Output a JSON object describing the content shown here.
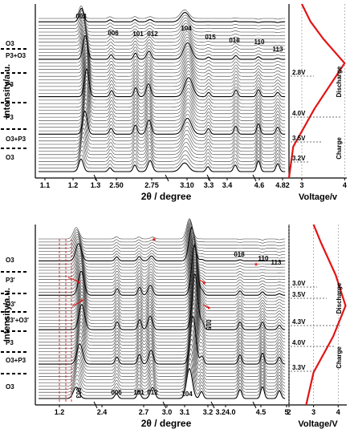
{
  "panels": [
    {
      "id": "top",
      "y_axis_label": "Intensity/a.u.",
      "x_axis_label": "2θ / degree",
      "right_axis_label": "Voltage/v",
      "phase_labels": [
        "O3",
        "P3+O3",
        "P3",
        "P3",
        "O3+P3",
        "O3"
      ],
      "peak_labels": [
        "003",
        "006",
        "101",
        "012",
        "104",
        "015",
        "018",
        "110",
        "113"
      ],
      "voltage_labels": [
        "2.8V",
        "4.0V",
        "3.5V",
        "3.2V"
      ],
      "side_labels": [
        "Discharge",
        "Charge"
      ],
      "x_ticks": [
        "1.1",
        "1.2",
        "1.3",
        "2.50",
        "2.75",
        "3.10",
        "3.3",
        "3.4",
        "4.6",
        "4.82",
        "3",
        "4"
      ]
    },
    {
      "id": "bottom",
      "y_axis_label": "Intensity/a.u.",
      "x_axis_label": "2θ / degree",
      "right_axis_label": "Voltage/V",
      "phase_labels": [
        "O3",
        "P3'",
        "O3'",
        "P3'+O3'",
        "P3",
        "O3+P3",
        "O3"
      ],
      "peak_labels": [
        "018",
        "110",
        "113",
        "003",
        "006",
        "101",
        "012",
        "104",
        "015"
      ],
      "voltage_labels": [
        "3.0V",
        "3.5V",
        "4.3V",
        "4.0V",
        "3.3V"
      ],
      "side_labels": [
        "Discharge",
        "Charge"
      ],
      "x_ticks": [
        "1.2",
        "2.4",
        "2.7",
        "3.0",
        "3.1",
        "3.2",
        "3.24.0",
        "4.5",
        "5",
        "2",
        "3",
        "4"
      ],
      "markers": [
        "*",
        "*"
      ]
    }
  ],
  "chart_data": [
    {
      "type": "line",
      "x_axis": "2θ / degree",
      "y_axis": "Intensity/a.u.",
      "x_ticks": [
        1.1,
        1.2,
        1.3,
        2.5,
        2.75,
        3.1,
        3.3,
        3.4,
        4.6,
        4.82
      ],
      "peak_labels": [
        "003",
        "006",
        "101",
        "012",
        "104",
        "015",
        "018",
        "110",
        "113"
      ],
      "phases": [
        "O3",
        "P3+O3",
        "P3",
        "P3",
        "O3+P3",
        "O3"
      ],
      "voltage_profile": {
        "x_label": "Voltage/v",
        "x_ticks": [
          3,
          4
        ],
        "labels": [
          "2.8V",
          "4.0V",
          "3.5V",
          "3.2V"
        ],
        "points": [
          {
            "voltage": 3.0,
            "position": 0.0
          },
          {
            "voltage": 3.2,
            "position": 0.1
          },
          {
            "voltage": 3.5,
            "position": 0.2
          },
          {
            "voltage": 4.0,
            "position": 0.34
          },
          {
            "voltage": 3.3,
            "position": 0.6
          },
          {
            "voltage": 2.8,
            "position": 0.82
          },
          {
            "voltage": 2.7,
            "position": 1.0
          }
        ]
      },
      "color": "#e31414"
    },
    {
      "type": "line",
      "x_axis": "2θ / degree",
      "y_axis": "Intensity/a.u.",
      "x_ticks": [
        1.2,
        2.4,
        2.7,
        3.0,
        3.1,
        3.2,
        4.0,
        4.5,
        5
      ],
      "peak_labels": [
        "003",
        "006",
        "101",
        "012",
        "104",
        "015",
        "018",
        "110",
        "113"
      ],
      "phases": [
        "O3",
        "P3'",
        "O3'",
        "P3'+O3'",
        "P3",
        "O3+P3",
        "O3"
      ],
      "voltage_profile": {
        "x_label": "Voltage/V",
        "x_ticks": [
          2,
          3,
          4
        ],
        "labels": [
          "3.0V",
          "3.5V",
          "4.3V",
          "4.0V",
          "3.3V"
        ],
        "points": [
          {
            "voltage": 3.0,
            "position": 0.0
          },
          {
            "voltage": 3.3,
            "position": 0.1
          },
          {
            "voltage": 3.9,
            "position": 0.28
          },
          {
            "voltage": 4.3,
            "position": 0.45
          },
          {
            "voltage": 3.8,
            "position": 0.62
          },
          {
            "voltage": 3.0,
            "position": 0.82
          },
          {
            "voltage": 2.7,
            "position": 1.0
          }
        ]
      },
      "color": "#e31414"
    }
  ]
}
